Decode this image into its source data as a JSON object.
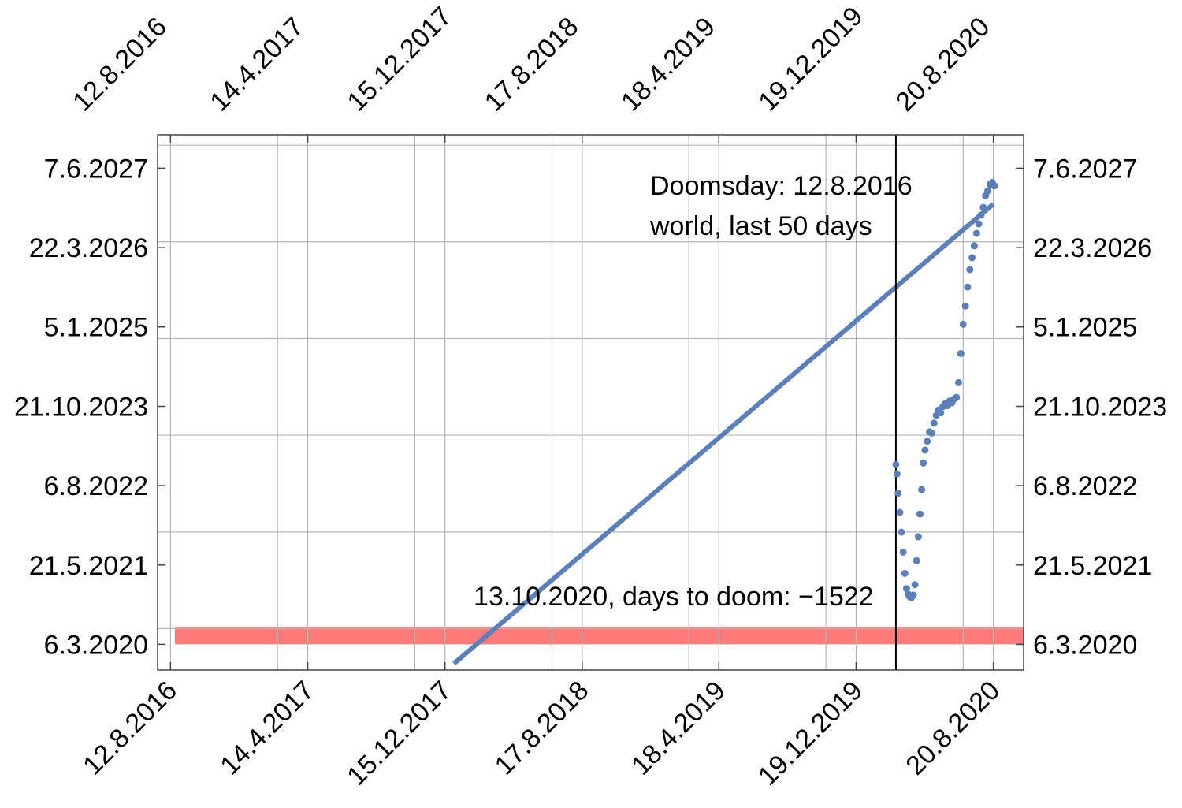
{
  "chart_data": {
    "type": "scatter",
    "title": "",
    "xlabel": "",
    "ylabel": "",
    "x_axis_type": "date",
    "y_axis_type": "date",
    "grid": true,
    "x_ticks": [
      "12.8.2016",
      "14.4.2017",
      "15.12.2017",
      "17.8.2018",
      "18.4.2019",
      "19.12.2019",
      "20.8.2020"
    ],
    "y_ticks": [
      "6.3.2020",
      "21.5.2021",
      "6.8.2022",
      "21.10.2023",
      "5.1.2025",
      "22.3.2026",
      "7.6.2027"
    ],
    "xlim": [
      "2016-07-20",
      "2020-10-13"
    ],
    "ylim": [
      "2019-10-15",
      "2027-12-10"
    ],
    "annotations": {
      "doomsday": "Doomsday: 12.8.2016",
      "subtitle": "world, last 50 days",
      "bottom": "13.10.2020, days to doom: −1522"
    },
    "colors": {
      "series": "#5b7fb8",
      "band": "#ff7a7a",
      "grid": "#b5b5b5",
      "marker_line": "#000000"
    },
    "vertical_line_x": "2020-02-28",
    "band": {
      "y_from": "2020-03-06",
      "y_to": "2020-06-10"
    },
    "trend_line": [
      {
        "x": "2017-12-31",
        "y": "2019-11-20"
      },
      {
        "x": "2020-08-20",
        "y": "2026-11-20"
      }
    ],
    "series": [
      {
        "points": [
          {
            "x": "2020-02-28",
            "y": "2022-12-01"
          },
          {
            "x": "2020-03-01",
            "y": "2022-10-10"
          },
          {
            "x": "2020-03-03",
            "y": "2022-06-25"
          },
          {
            "x": "2020-03-06",
            "y": "2022-03-10"
          },
          {
            "x": "2020-03-09",
            "y": "2021-11-20"
          },
          {
            "x": "2020-03-12",
            "y": "2021-08-01"
          },
          {
            "x": "2020-03-15",
            "y": "2021-04-05"
          },
          {
            "x": "2020-03-18",
            "y": "2021-01-10"
          },
          {
            "x": "2020-03-21",
            "y": "2020-12-10"
          },
          {
            "x": "2020-03-24",
            "y": "2020-11-25"
          },
          {
            "x": "2020-03-27",
            "y": "2020-11-22"
          },
          {
            "x": "2020-03-30",
            "y": "2020-12-05"
          },
          {
            "x": "2020-04-02",
            "y": "2021-02-01"
          },
          {
            "x": "2020-04-05",
            "y": "2021-06-15"
          },
          {
            "x": "2020-04-08",
            "y": "2021-10-25"
          },
          {
            "x": "2020-04-11",
            "y": "2022-03-01"
          },
          {
            "x": "2020-04-14",
            "y": "2022-07-15"
          },
          {
            "x": "2020-04-17",
            "y": "2022-12-10"
          },
          {
            "x": "2020-04-20",
            "y": "2023-02-20"
          },
          {
            "x": "2020-04-24",
            "y": "2023-04-10"
          },
          {
            "x": "2020-04-28",
            "y": "2023-06-01"
          },
          {
            "x": "2020-05-02",
            "y": "2023-05-25"
          },
          {
            "x": "2020-05-06",
            "y": "2023-07-20"
          },
          {
            "x": "2020-05-10",
            "y": "2023-09-01"
          },
          {
            "x": "2020-05-14",
            "y": "2023-10-01"
          },
          {
            "x": "2020-05-18",
            "y": "2023-09-15"
          },
          {
            "x": "2020-05-22",
            "y": "2023-10-20"
          },
          {
            "x": "2020-05-26",
            "y": "2023-11-05"
          },
          {
            "x": "2020-05-30",
            "y": "2023-10-25"
          },
          {
            "x": "2020-06-03",
            "y": "2023-11-20"
          },
          {
            "x": "2020-06-07",
            "y": "2023-11-10"
          },
          {
            "x": "2020-06-11",
            "y": "2023-12-01"
          },
          {
            "x": "2020-06-15",
            "y": "2023-12-10"
          },
          {
            "x": "2020-06-19",
            "y": "2024-03-01"
          },
          {
            "x": "2020-06-23",
            "y": "2024-08-10"
          },
          {
            "x": "2020-06-27",
            "y": "2025-01-20"
          },
          {
            "x": "2020-07-01",
            "y": "2025-05-01"
          },
          {
            "x": "2020-07-05",
            "y": "2025-08-15"
          },
          {
            "x": "2020-07-09",
            "y": "2025-11-20"
          },
          {
            "x": "2020-07-13",
            "y": "2026-01-25"
          },
          {
            "x": "2020-07-17",
            "y": "2026-04-01"
          },
          {
            "x": "2020-07-21",
            "y": "2026-06-10"
          },
          {
            "x": "2020-07-25",
            "y": "2026-08-01"
          },
          {
            "x": "2020-07-29",
            "y": "2026-09-20"
          },
          {
            "x": "2020-08-02",
            "y": "2026-11-01"
          },
          {
            "x": "2020-08-06",
            "y": "2027-01-05"
          },
          {
            "x": "2020-08-10",
            "y": "2027-02-01"
          },
          {
            "x": "2020-08-14",
            "y": "2027-03-10"
          },
          {
            "x": "2020-08-18",
            "y": "2027-03-20"
          },
          {
            "x": "2020-08-22",
            "y": "2027-03-01"
          }
        ]
      }
    ]
  }
}
